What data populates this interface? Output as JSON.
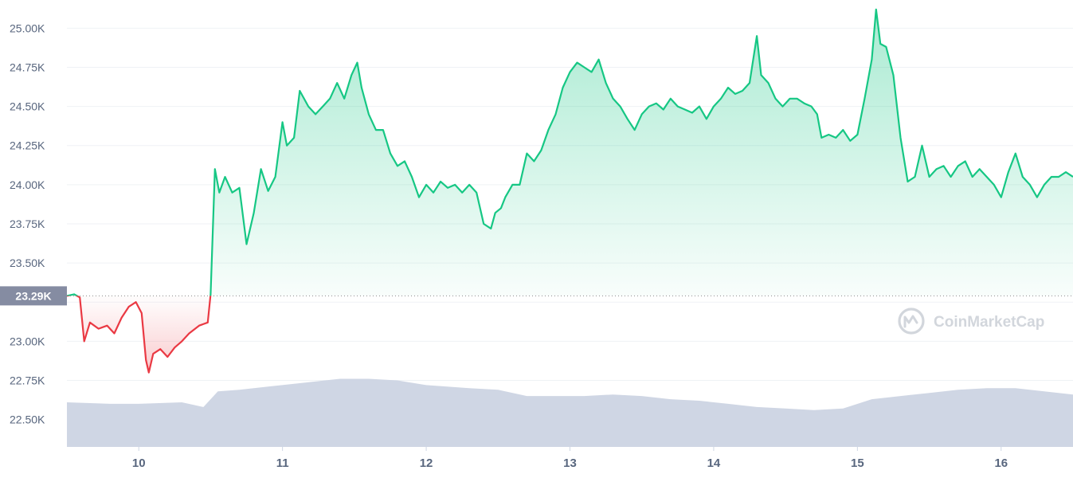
{
  "watermark": {
    "label": "CoinMarketCap",
    "icon": "coinmarketcap-logo-icon"
  },
  "chart_data": {
    "type": "line",
    "title": "",
    "xlabel": "",
    "ylabel": "",
    "ylim": [
      22.33,
      25.18
    ],
    "xlim": [
      9.5,
      16.5
    ],
    "yticks": [
      22.5,
      22.75,
      23.0,
      23.25,
      23.5,
      23.75,
      24.0,
      24.25,
      24.5,
      24.75,
      25.0
    ],
    "ytick_labels": [
      "22.50K",
      "22.75K",
      "23.00K",
      "",
      "23.50K",
      "23.75K",
      "24.00K",
      "24.25K",
      "24.50K",
      "24.75K",
      "25.00K"
    ],
    "xticks": [
      10,
      11,
      12,
      13,
      14,
      15,
      16
    ],
    "xtick_labels": [
      "10",
      "11",
      "12",
      "13",
      "14",
      "15",
      "16"
    ],
    "grid": true,
    "reference_line": {
      "value": 23.29,
      "label": "23.29K"
    },
    "colors": {
      "above": "#16c784",
      "below": "#ea3943",
      "volume": "#cfd6e4",
      "ref_badge": "#858ca2"
    },
    "series": [
      {
        "x": [
          9.5,
          9.55,
          9.59,
          9.62,
          9.66,
          9.72,
          9.78,
          9.83,
          9.88,
          9.93,
          9.98,
          10.02,
          10.05,
          10.07,
          10.1,
          10.15,
          10.2,
          10.25,
          10.3,
          10.35,
          10.42,
          10.48,
          10.5,
          10.53,
          10.56,
          10.6,
          10.65,
          10.7,
          10.75,
          10.8,
          10.85,
          10.9,
          10.95,
          11.0,
          11.03,
          11.08,
          11.12,
          11.18,
          11.23,
          11.28,
          11.33,
          11.38,
          11.43,
          11.48,
          11.52,
          11.55,
          11.6,
          11.65,
          11.7,
          11.75,
          11.8,
          11.85,
          11.9,
          11.95,
          12.0,
          12.05,
          12.1,
          12.15,
          12.2,
          12.25,
          12.3,
          12.35,
          12.4,
          12.45,
          12.48,
          12.52,
          12.55,
          12.6,
          12.65,
          12.7,
          12.75,
          12.8,
          12.85,
          12.9,
          12.95,
          13.0,
          13.05,
          13.1,
          13.15,
          13.2,
          13.25,
          13.3,
          13.35,
          13.4,
          13.45,
          13.5,
          13.55,
          13.6,
          13.65,
          13.7,
          13.75,
          13.8,
          13.85,
          13.9,
          13.95,
          14.0,
          14.05,
          14.1,
          14.15,
          14.2,
          14.25,
          14.3,
          14.33,
          14.38,
          14.43,
          14.48,
          14.53,
          14.58,
          14.63,
          14.68,
          14.72,
          14.75,
          14.8,
          14.85,
          14.9,
          14.95,
          15.0,
          15.05,
          15.1,
          15.13,
          15.16,
          15.2,
          15.25,
          15.3,
          15.35,
          15.4,
          15.45,
          15.5,
          15.55,
          15.6,
          15.65,
          15.7,
          15.75,
          15.8,
          15.85,
          15.9,
          15.95,
          16.0,
          16.05,
          16.1,
          16.15,
          16.2,
          16.25,
          16.3,
          16.35,
          16.4,
          16.45,
          16.5
        ],
        "y": [
          23.29,
          23.3,
          23.28,
          23.0,
          23.12,
          23.08,
          23.1,
          23.05,
          23.15,
          23.22,
          23.25,
          23.18,
          22.88,
          22.8,
          22.92,
          22.95,
          22.9,
          22.96,
          23.0,
          23.05,
          23.1,
          23.12,
          23.3,
          24.1,
          23.95,
          24.05,
          23.95,
          23.98,
          23.62,
          23.82,
          24.1,
          23.96,
          24.05,
          24.4,
          24.25,
          24.3,
          24.6,
          24.5,
          24.45,
          24.5,
          24.55,
          24.65,
          24.55,
          24.7,
          24.78,
          24.62,
          24.45,
          24.35,
          24.35,
          24.2,
          24.12,
          24.15,
          24.05,
          23.92,
          24.0,
          23.95,
          24.02,
          23.98,
          24.0,
          23.95,
          24.0,
          23.95,
          23.75,
          23.72,
          23.82,
          23.85,
          23.92,
          24.0,
          24.0,
          24.2,
          24.15,
          24.22,
          24.35,
          24.45,
          24.62,
          24.72,
          24.78,
          24.75,
          24.72,
          24.8,
          24.65,
          24.55,
          24.5,
          24.42,
          24.35,
          24.45,
          24.5,
          24.52,
          24.48,
          24.55,
          24.5,
          24.48,
          24.46,
          24.5,
          24.42,
          24.5,
          24.55,
          24.62,
          24.58,
          24.6,
          24.65,
          24.95,
          24.7,
          24.65,
          24.55,
          24.5,
          24.55,
          24.55,
          24.52,
          24.5,
          24.45,
          24.3,
          24.32,
          24.3,
          24.35,
          24.28,
          24.32,
          24.55,
          24.8,
          25.12,
          24.9,
          24.88,
          24.7,
          24.3,
          24.02,
          24.05,
          24.25,
          24.05,
          24.1,
          24.12,
          24.05,
          24.12,
          24.15,
          24.05,
          24.1,
          24.05,
          24.0,
          23.92,
          24.08,
          24.2,
          24.05,
          24.0,
          23.92,
          24.0,
          24.05,
          24.05,
          24.08,
          24.05
        ]
      },
      {
        "x": [
          9.5,
          9.8,
          10.0,
          10.3,
          10.45,
          10.55,
          10.7,
          10.9,
          11.2,
          11.4,
          11.6,
          11.8,
          12.0,
          12.3,
          12.5,
          12.7,
          12.9,
          13.1,
          13.3,
          13.5,
          13.7,
          13.9,
          14.1,
          14.3,
          14.5,
          14.7,
          14.9,
          15.1,
          15.3,
          15.5,
          15.7,
          15.9,
          16.1,
          16.3,
          16.5
        ],
        "y": [
          22.61,
          22.6,
          22.6,
          22.61,
          22.58,
          22.68,
          22.69,
          22.71,
          22.74,
          22.76,
          22.76,
          22.75,
          22.72,
          22.7,
          22.69,
          22.65,
          22.65,
          22.65,
          22.66,
          22.65,
          22.63,
          22.62,
          22.6,
          22.58,
          22.57,
          22.56,
          22.57,
          22.63,
          22.65,
          22.67,
          22.69,
          22.7,
          22.7,
          22.68,
          22.66
        ]
      }
    ]
  }
}
